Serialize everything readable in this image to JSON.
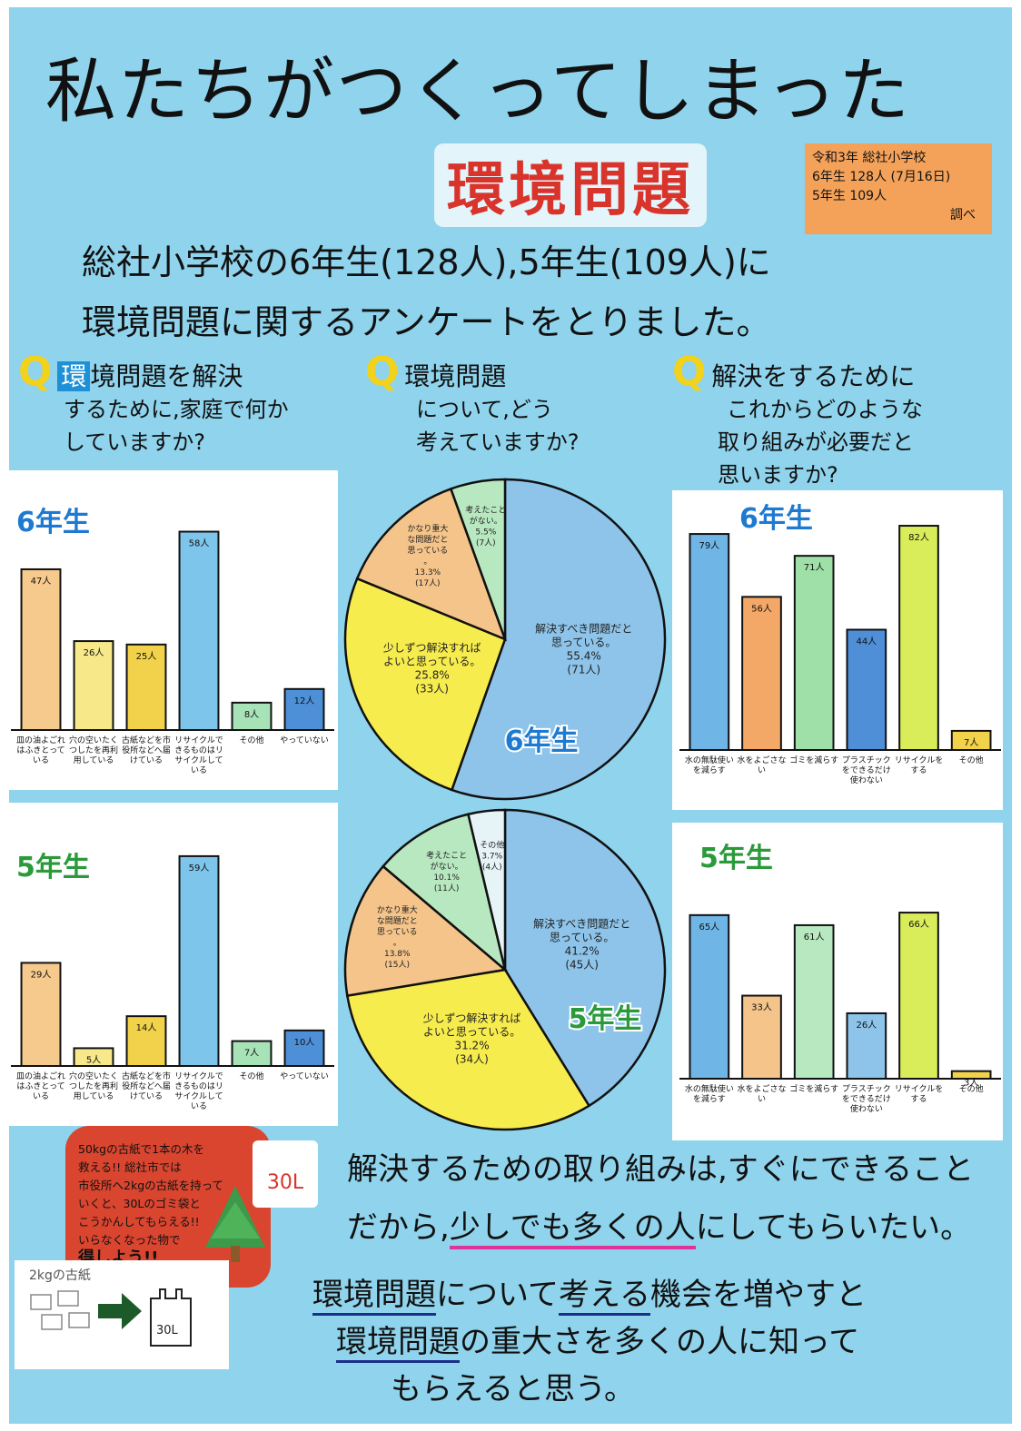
{
  "header": {
    "title": "私たちがつくってしまった",
    "subtitle": "環境問題",
    "info": [
      "令和3年 総社小学校",
      "6年生 128人 (7月16日)",
      "5年生 109人",
      "調べ"
    ]
  },
  "intro": {
    "line1": "総社小学校の6年生(128人),5年生(109人)に",
    "line2": "環境問題に関するアンケートをとりました。"
  },
  "questions": [
    {
      "mark": "Q",
      "highlight": "環",
      "lines": [
        "境問題を解決",
        "するために,家庭で何か",
        "していますか?"
      ]
    },
    {
      "mark": "Q",
      "lines": [
        "環境問題",
        "について,どう",
        "考えていますか?"
      ]
    },
    {
      "mark": "Q",
      "lines": [
        "解決をするために",
        "これからどのような",
        "取り組みが必要だと",
        "思いますか?"
      ]
    }
  ],
  "chart_data": [
    {
      "type": "bar",
      "grade": "6年生",
      "categories": [
        "皿の油よごれはふきとっている",
        "穴の空いたくつしたを再利用している",
        "古紙などを市役所などへ届けている",
        "リサイクルできるものはリサイクルしている",
        "その他",
        "やっていない"
      ],
      "values": [
        47,
        26,
        25,
        58,
        8,
        12
      ],
      "value_labels": [
        "47人",
        "26人",
        "25人",
        "58人",
        "8人",
        "12人"
      ],
      "colors": [
        "#f6c98c",
        "#f7e88a",
        "#f2d24a",
        "#7ec5ec",
        "#a8e3b8",
        "#4e90d8"
      ],
      "ylim": [
        0,
        60
      ]
    },
    {
      "type": "bar",
      "grade": "5年生",
      "categories": [
        "皿の油よごれはふきとっている",
        "穴の空いたくつしたを再利用している",
        "古紙などを市役所などへ届けている",
        "リサイクルできるものはリサイクルしている",
        "その他",
        "やっていない"
      ],
      "values": [
        29,
        5,
        14,
        59,
        7,
        10
      ],
      "value_labels": [
        "29人",
        "5人",
        "14人",
        "59人",
        "7人",
        "10人"
      ],
      "colors": [
        "#f6c98c",
        "#f7e88a",
        "#f2d24a",
        "#7ec5ec",
        "#a8e3b8",
        "#4e90d8"
      ],
      "ylim": [
        0,
        60
      ]
    },
    {
      "type": "pie",
      "grade": "6年生",
      "slices": [
        {
          "label": "解決すべき問題だと思っている。",
          "pct": "55.4%",
          "count": "(71人)",
          "value": 55.4,
          "color": "#8ec4ea"
        },
        {
          "label": "少しずつ解決すればよいと思っている。",
          "pct": "25.8%",
          "count": "(33人)",
          "value": 25.8,
          "color": "#f7ec4e"
        },
        {
          "label": "かなり重大な問題だと思っている。",
          "pct": "13.3%",
          "count": "(17人)",
          "value": 13.3,
          "color": "#f4c48a"
        },
        {
          "label": "考えたことがない。",
          "pct": "5.5%",
          "count": "(7人)",
          "value": 5.5,
          "color": "#b8e8c0"
        }
      ]
    },
    {
      "type": "pie",
      "grade": "5年生",
      "slices": [
        {
          "label": "解決すべき問題だと思っている。",
          "pct": "41.2%",
          "count": "(45人)",
          "value": 41.2,
          "color": "#8ec4ea"
        },
        {
          "label": "少しずつ解決すればよいと思っている。",
          "pct": "31.2%",
          "count": "(34人)",
          "value": 31.2,
          "color": "#f7ec4e"
        },
        {
          "label": "かなり重大な問題だと思っている。",
          "pct": "13.8%",
          "count": "(15人)",
          "value": 13.8,
          "color": "#f4c48a"
        },
        {
          "label": "考えたことがない。",
          "pct": "10.1%",
          "count": "(11人)",
          "value": 10.1,
          "color": "#b8e8c0"
        },
        {
          "label": "その他",
          "pct": "3.7%",
          "count": "(4人)",
          "value": 3.7,
          "color": "#e6f4f7"
        }
      ]
    },
    {
      "type": "bar",
      "grade": "6年生",
      "categories": [
        "水の無駄使いを減らす",
        "水をよごさない",
        "ゴミを減らす",
        "プラスチックをできるだけ使わない",
        "リサイクルをする",
        "その他"
      ],
      "values": [
        79,
        56,
        71,
        44,
        82,
        7
      ],
      "value_labels": [
        "79人",
        "56人",
        "71人",
        "44人",
        "82人",
        "7人"
      ],
      "colors": [
        "#6fb6e6",
        "#f4a868",
        "#9fe0a8",
        "#4e8fd8",
        "#d9ec5a",
        "#f2d24a"
      ],
      "ylim": [
        0,
        85
      ]
    },
    {
      "type": "bar",
      "grade": "5年生",
      "categories": [
        "水の無駄使いを減らす",
        "水をよごさない",
        "ゴミを減らす",
        "プラスチックをできるだけ使わない",
        "リサイクルをする",
        "その他"
      ],
      "values": [
        65,
        33,
        61,
        26,
        66,
        3
      ],
      "value_labels": [
        "65人",
        "33人",
        "61人",
        "26人",
        "66人",
        "3人"
      ],
      "colors": [
        "#6fb6e6",
        "#f4c48a",
        "#b8e8c0",
        "#8ec4ea",
        "#d9ec5a",
        "#f2d24a"
      ],
      "ylim": [
        0,
        70
      ]
    }
  ],
  "note": {
    "lines": [
      "50kgの古紙で1本の木を",
      "救える!! 総社市では",
      "市役所へ2kgの古紙を持って",
      "いくと、30Lのゴミ袋と",
      "こうかんしてもらえる!!",
      "いらなくなった物で",
      "得しよう!!"
    ],
    "bag_label": "30L"
  },
  "diagram": {
    "caption": "2kgの古紙",
    "bag_label": "30L"
  },
  "conclusion": {
    "line1": "解決するための取り組みは,すぐにできること",
    "line2_a": "だから,",
    "line2_b": "少しでも多くの人",
    "line2_c": "にしてもらいたい。"
  },
  "final": {
    "l1_a": "環境問題",
    "l1_b": "について",
    "l1_c": "考える",
    "l1_d": "機会を増やすと",
    "l2_a": "環境問題",
    "l2_b": "の重大さを多くの人に知って",
    "l3": "もらえると思う。"
  },
  "colors": {
    "background": "#8fd3ec",
    "accent_red": "#d9342b",
    "underline_pink": "#e0339a",
    "underline_blue": "#1b2f8a"
  }
}
